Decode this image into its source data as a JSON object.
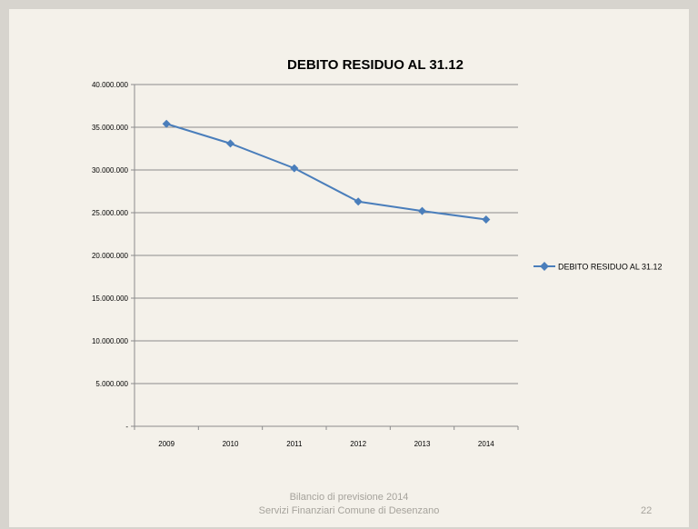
{
  "chart_data": {
    "type": "line",
    "title": "DEBITO RESIDUO AL 31.12",
    "xlabel": "",
    "ylabel": "",
    "categories": [
      "2009",
      "2010",
      "2011",
      "2012",
      "2013",
      "2014"
    ],
    "series": [
      {
        "name": "DEBITO RESIDUO AL 31.12",
        "values": [
          35400000,
          33100000,
          30200000,
          26300000,
          25200000,
          24200000
        ],
        "color": "#4a7ebb",
        "marker": "diamond"
      }
    ],
    "ylim": [
      0,
      40000000
    ],
    "y_ticks": [
      {
        "value": 40000000,
        "label": "40.000.000"
      },
      {
        "value": 35000000,
        "label": "35.000.000"
      },
      {
        "value": 30000000,
        "label": "30.000.000"
      },
      {
        "value": 25000000,
        "label": "25.000.000"
      },
      {
        "value": 20000000,
        "label": "20.000.000"
      },
      {
        "value": 15000000,
        "label": "15.000.000"
      },
      {
        "value": 10000000,
        "label": "10.000.000"
      },
      {
        "value": 5000000,
        "label": "5.000.000"
      },
      {
        "value": 0,
        "label": "-"
      }
    ],
    "grid": true,
    "legend_position": "right"
  },
  "footer": {
    "line1": "Bilancio di previsione 2014",
    "line2": "Servizi Finanziari Comune di Desenzano",
    "page_number": "22"
  }
}
